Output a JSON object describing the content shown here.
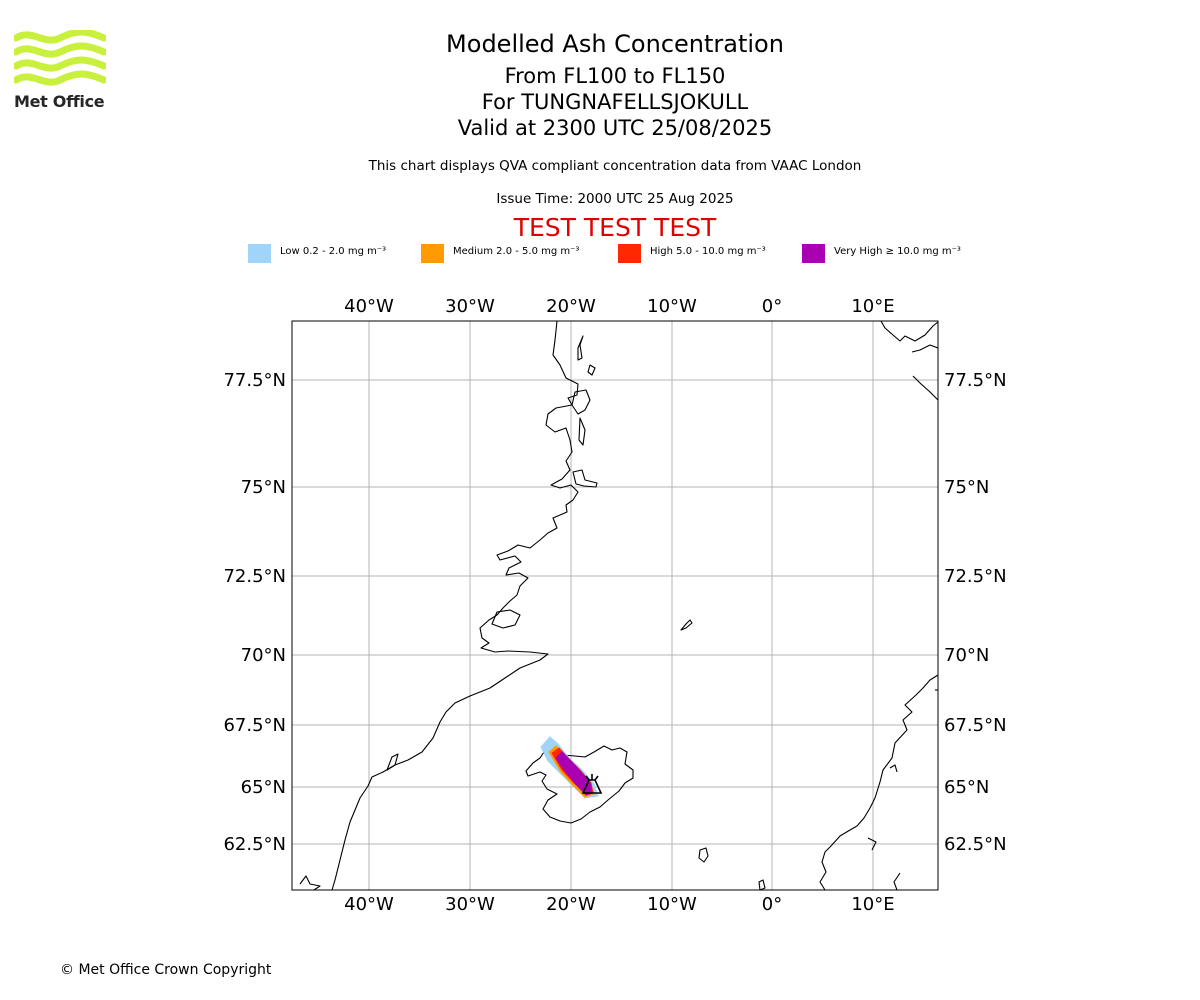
{
  "header": {
    "logo_text": "Met Office",
    "title": "Modelled Ash Concentration",
    "levels": "From FL100 to FL150",
    "volcano": "For TUNGNAFELLSJOKULL",
    "valid": "Valid at 2300 UTC 25/08/2025",
    "subtitle": "This chart displays QVA compliant concentration data from VAAC London",
    "issue_time": "Issue Time: 2000 UTC 25 Aug 2025",
    "test_banner": "TEST TEST TEST"
  },
  "legend": [
    {
      "label": "Low 0.2 - 2.0 mg m⁻³",
      "color": "#a0d4fa"
    },
    {
      "label": "Medium 2.0 - 5.0 mg m⁻³",
      "color": "#ff9a00"
    },
    {
      "label": "High 5.0 - 10.0 mg m⁻³",
      "color": "#ff2800"
    },
    {
      "label": "Very High  ≥  10.0 mg m⁻³",
      "color": "#a800b2"
    }
  ],
  "map": {
    "lon_labels": [
      "40°W",
      "30°W",
      "20°W",
      "10°W",
      "0°",
      "10°E"
    ],
    "lat_labels": [
      "77.5°N",
      "75°N",
      "72.5°N",
      "70°N",
      "67.5°N",
      "65°N",
      "62.5°N"
    ],
    "volcano_marker": "volcano-icon",
    "grid": true
  },
  "footer": {
    "copyright": "© Met Office Crown Copyright"
  }
}
